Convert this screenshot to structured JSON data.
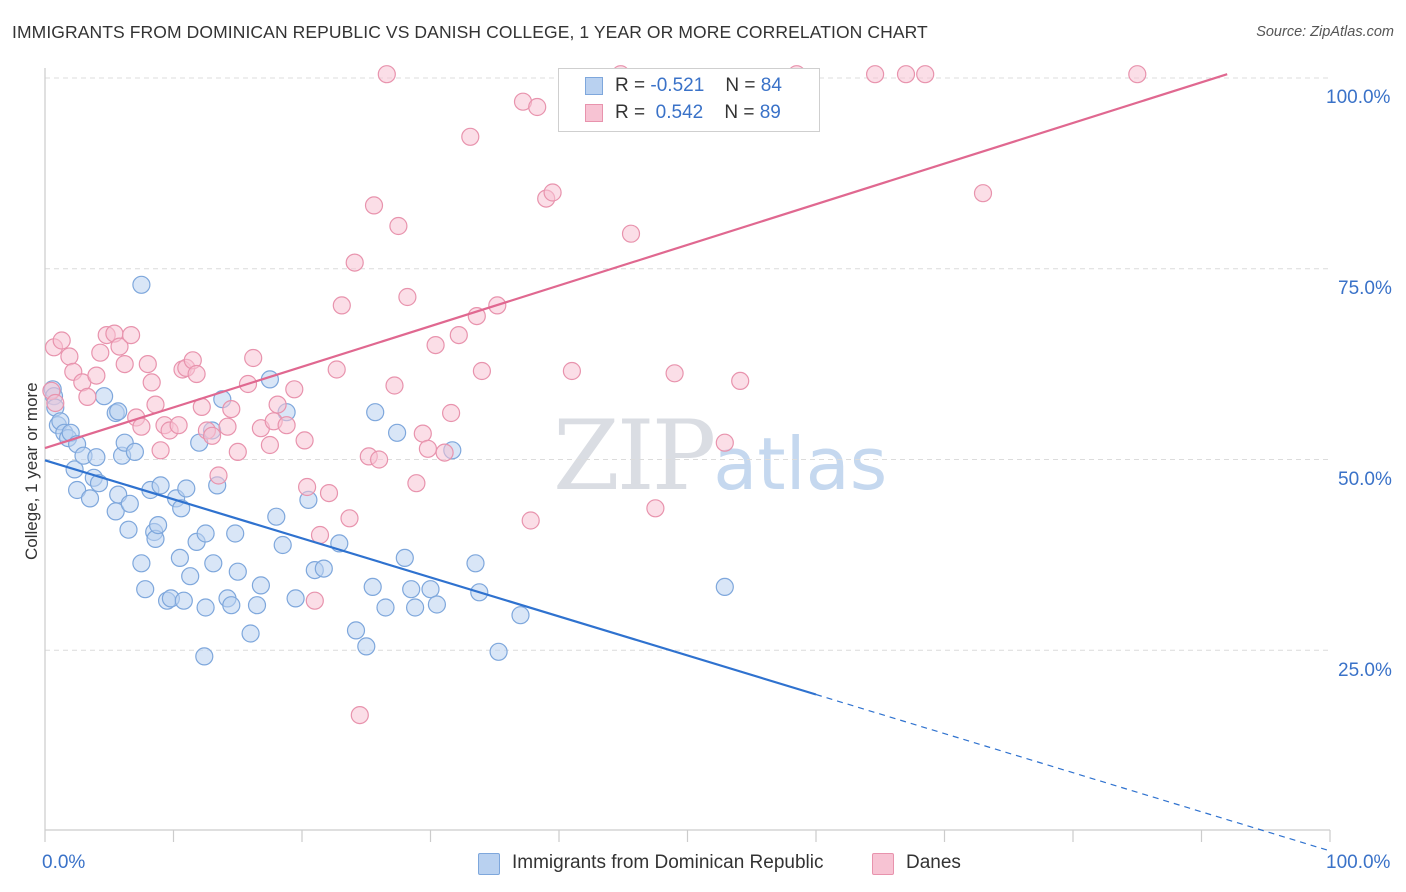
{
  "header": {
    "title": "IMMIGRANTS FROM DOMINICAN REPUBLIC VS DANISH COLLEGE, 1 YEAR OR MORE CORRELATION CHART",
    "source": "Source: ZipAtlas.com"
  },
  "watermark": {
    "zip": "ZIP",
    "atlas": "atlas"
  },
  "legend_top": {
    "rows": [
      {
        "r_label": "R =",
        "r_value": "-0.521",
        "n_label": "N =",
        "n_value": "84"
      },
      {
        "r_label": "R =",
        "r_value": "0.542",
        "n_label": "N =",
        "n_value": "89"
      }
    ]
  },
  "legend_bottom": {
    "items": [
      {
        "label": "Immigrants from Dominican Republic"
      },
      {
        "label": "Danes"
      }
    ]
  },
  "axis": {
    "ylabel": "College, 1 year or more",
    "y_ticks": [
      "100.0%",
      "75.0%",
      "50.0%",
      "25.0%"
    ],
    "x_left": "0.0%",
    "x_right": "100.0%"
  },
  "colors": {
    "blue_fill": "#b9d1f0",
    "blue_stroke": "#7ea7dc",
    "blue_line": "#2f72cf",
    "pink_fill": "#f7c3d3",
    "pink_stroke": "#e893ad",
    "pink_line": "#e06890",
    "grid": "#dcdcdc",
    "tick_text": "#3a72c8"
  },
  "chart_data": {
    "type": "scatter",
    "title": "IMMIGRANTS FROM DOMINICAN REPUBLIC VS DANISH COLLEGE, 1 YEAR OR MORE CORRELATION CHART",
    "xlabel": "",
    "ylabel": "College, 1 year or more",
    "xlim": [
      0,
      100
    ],
    "ylim": [
      0,
      103
    ],
    "y_gridlines": [
      25,
      50,
      75,
      100
    ],
    "grid": true,
    "series": [
      {
        "name": "Immigrants from Dominican Republic",
        "color": "#7ea7dc",
        "points": [
          [
            0.6,
            59.2
          ],
          [
            0.7,
            58.3
          ],
          [
            0.8,
            56.8
          ],
          [
            1.0,
            54.5
          ],
          [
            1.2,
            55.0
          ],
          [
            1.5,
            53.5
          ],
          [
            1.8,
            52.8
          ],
          [
            2.0,
            53.5
          ],
          [
            2.5,
            52.0
          ],
          [
            2.3,
            48.7
          ],
          [
            2.5,
            46.0
          ],
          [
            3.0,
            50.5
          ],
          [
            3.5,
            44.9
          ],
          [
            3.8,
            47.6
          ],
          [
            4.2,
            46.9
          ],
          [
            4.0,
            50.3
          ],
          [
            4.6,
            58.3
          ],
          [
            5.5,
            56.1
          ],
          [
            5.7,
            45.4
          ],
          [
            5.5,
            43.2
          ],
          [
            5.7,
            56.3
          ],
          [
            6.0,
            50.5
          ],
          [
            6.2,
            52.2
          ],
          [
            6.5,
            40.8
          ],
          [
            6.6,
            44.2
          ],
          [
            7.0,
            51.0
          ],
          [
            7.5,
            36.4
          ],
          [
            7.5,
            72.9
          ],
          [
            7.8,
            33.0
          ],
          [
            8.2,
            46.0
          ],
          [
            8.5,
            40.5
          ],
          [
            8.6,
            39.6
          ],
          [
            8.8,
            41.4
          ],
          [
            9.0,
            46.6
          ],
          [
            9.5,
            31.5
          ],
          [
            9.8,
            31.8
          ],
          [
            10.2,
            44.9
          ],
          [
            10.5,
            37.1
          ],
          [
            10.6,
            43.6
          ],
          [
            10.8,
            31.5
          ],
          [
            11.0,
            46.2
          ],
          [
            11.3,
            34.7
          ],
          [
            11.8,
            39.2
          ],
          [
            12.0,
            52.2
          ],
          [
            12.4,
            24.2
          ],
          [
            12.5,
            30.6
          ],
          [
            12.5,
            40.3
          ],
          [
            13.0,
            53.8
          ],
          [
            13.1,
            36.4
          ],
          [
            13.4,
            46.6
          ],
          [
            13.8,
            57.9
          ],
          [
            14.2,
            31.8
          ],
          [
            14.5,
            30.9
          ],
          [
            14.8,
            40.3
          ],
          [
            15.0,
            35.3
          ],
          [
            16.0,
            27.2
          ],
          [
            16.5,
            30.9
          ],
          [
            16.8,
            33.5
          ],
          [
            17.5,
            60.5
          ],
          [
            18.0,
            42.5
          ],
          [
            18.5,
            38.8
          ],
          [
            18.8,
            56.2
          ],
          [
            19.5,
            31.8
          ],
          [
            20.5,
            44.7
          ],
          [
            21.0,
            35.5
          ],
          [
            21.7,
            35.7
          ],
          [
            22.9,
            39.0
          ],
          [
            24.2,
            27.6
          ],
          [
            25.0,
            25.5
          ],
          [
            25.5,
            33.3
          ],
          [
            25.7,
            56.2
          ],
          [
            26.5,
            30.6
          ],
          [
            27.4,
            53.5
          ],
          [
            28.0,
            37.1
          ],
          [
            28.5,
            33.0
          ],
          [
            28.8,
            30.6
          ],
          [
            30.0,
            33.0
          ],
          [
            30.5,
            31.0
          ],
          [
            31.7,
            51.2
          ],
          [
            33.5,
            36.4
          ],
          [
            33.8,
            32.6
          ],
          [
            35.3,
            24.8
          ],
          [
            37.0,
            29.6
          ],
          [
            52.9,
            33.3
          ]
        ],
        "trend": {
          "x0": 0,
          "y0": 49.9,
          "x1": 60,
          "y1": 19.2,
          "dashed_to_x": 100,
          "dashed_to_y": -1.3
        }
      },
      {
        "name": "Danes",
        "color": "#e893ad",
        "points": [
          [
            0.5,
            59.0
          ],
          [
            0.8,
            57.4
          ],
          [
            0.7,
            64.7
          ],
          [
            1.3,
            65.6
          ],
          [
            1.9,
            63.5
          ],
          [
            2.2,
            61.5
          ],
          [
            2.9,
            60.1
          ],
          [
            3.3,
            58.2
          ],
          [
            4.0,
            61.0
          ],
          [
            4.3,
            64.0
          ],
          [
            4.8,
            66.3
          ],
          [
            5.4,
            66.5
          ],
          [
            5.8,
            64.8
          ],
          [
            6.2,
            62.5
          ],
          [
            6.7,
            66.3
          ],
          [
            7.1,
            55.5
          ],
          [
            7.5,
            54.3
          ],
          [
            8.0,
            62.5
          ],
          [
            8.3,
            60.1
          ],
          [
            8.6,
            57.2
          ],
          [
            9.0,
            51.2
          ],
          [
            9.3,
            54.5
          ],
          [
            9.7,
            53.8
          ],
          [
            10.4,
            54.5
          ],
          [
            10.7,
            61.8
          ],
          [
            11.0,
            62.0
          ],
          [
            11.5,
            63.0
          ],
          [
            11.8,
            61.2
          ],
          [
            12.2,
            56.9
          ],
          [
            12.6,
            53.8
          ],
          [
            13.0,
            53.1
          ],
          [
            13.5,
            47.9
          ],
          [
            14.2,
            54.3
          ],
          [
            14.5,
            56.6
          ],
          [
            15.0,
            51.0
          ],
          [
            15.8,
            59.9
          ],
          [
            16.2,
            63.3
          ],
          [
            16.8,
            54.1
          ],
          [
            17.5,
            51.9
          ],
          [
            17.8,
            55.0
          ],
          [
            18.1,
            57.2
          ],
          [
            18.8,
            54.5
          ],
          [
            19.4,
            59.2
          ],
          [
            20.2,
            52.5
          ],
          [
            20.4,
            46.4
          ],
          [
            21.0,
            31.5
          ],
          [
            21.4,
            40.1
          ],
          [
            22.1,
            45.6
          ],
          [
            22.7,
            61.8
          ],
          [
            23.1,
            70.2
          ],
          [
            23.7,
            42.3
          ],
          [
            24.1,
            75.8
          ],
          [
            24.5,
            16.5
          ],
          [
            25.2,
            50.4
          ],
          [
            25.6,
            83.3
          ],
          [
            26.0,
            50.0
          ],
          [
            26.6,
            100.5
          ],
          [
            27.2,
            59.7
          ],
          [
            27.5,
            80.6
          ],
          [
            28.2,
            71.3
          ],
          [
            28.9,
            46.9
          ],
          [
            29.4,
            53.4
          ],
          [
            29.8,
            51.4
          ],
          [
            30.4,
            65.0
          ],
          [
            31.1,
            50.9
          ],
          [
            31.6,
            56.1
          ],
          [
            32.2,
            66.3
          ],
          [
            33.1,
            92.3
          ],
          [
            33.6,
            68.8
          ],
          [
            34.0,
            61.6
          ],
          [
            35.2,
            70.2
          ],
          [
            37.2,
            96.9
          ],
          [
            37.8,
            42.0
          ],
          [
            38.3,
            96.2
          ],
          [
            39.0,
            84.2
          ],
          [
            39.5,
            85.0
          ],
          [
            41.0,
            61.6
          ],
          [
            44.8,
            100.5
          ],
          [
            45.6,
            79.6
          ],
          [
            47.5,
            43.6
          ],
          [
            49.0,
            61.3
          ],
          [
            52.9,
            52.2
          ],
          [
            54.1,
            60.3
          ],
          [
            58.5,
            100.5
          ],
          [
            64.6,
            100.5
          ],
          [
            67.0,
            100.5
          ],
          [
            68.5,
            100.5
          ],
          [
            73.0,
            84.9
          ],
          [
            85.0,
            100.5
          ]
        ],
        "trend": {
          "x0": 0,
          "y0": 51.5,
          "x1": 92,
          "y1": 100.5
        }
      }
    ]
  }
}
